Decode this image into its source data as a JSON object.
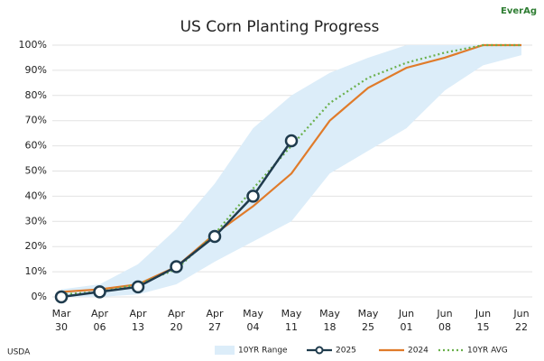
{
  "chart_data": {
    "type": "line",
    "title": "US Corn Planting Progress",
    "source": "USDA",
    "logo": "EverAg",
    "categories": [
      "Mar 30",
      "Apr 06",
      "Apr 13",
      "Apr 20",
      "Apr 27",
      "May 04",
      "May 11",
      "May 18",
      "May 25",
      "Jun 01",
      "Jun 08",
      "Jun 15",
      "Jun 22"
    ],
    "ylim": [
      0,
      100
    ],
    "yticks": [
      {
        "value": 0,
        "label": "0%"
      },
      {
        "value": 10,
        "label": "10%"
      },
      {
        "value": 20,
        "label": "20%"
      },
      {
        "value": 30,
        "label": "30%"
      },
      {
        "value": 40,
        "label": "40%"
      },
      {
        "value": 50,
        "label": "50%"
      },
      {
        "value": 60,
        "label": "60%"
      },
      {
        "value": 70,
        "label": "70%"
      },
      {
        "value": 80,
        "label": "80%"
      },
      {
        "value": 90,
        "label": "90%"
      },
      {
        "value": 100,
        "label": "100%"
      }
    ],
    "grid": true,
    "legend": "bottom",
    "series": [
      {
        "name": "10YR Range",
        "color": "#dcedf9",
        "low": [
          0,
          0,
          1,
          5,
          14,
          22,
          30,
          49,
          58,
          67,
          82,
          92,
          96
        ],
        "high": [
          3,
          5,
          13,
          27,
          45,
          67,
          80,
          89,
          95,
          100,
          100,
          100,
          100
        ]
      },
      {
        "name": "2025",
        "color": "#1f3b4d",
        "values": [
          0,
          2,
          4,
          12,
          24,
          40,
          62,
          null,
          null,
          null,
          null,
          null,
          null
        ]
      },
      {
        "name": "2024",
        "color": "#e07b2a",
        "values": [
          2,
          3,
          5,
          12,
          25,
          36,
          49,
          70,
          83,
          91,
          95,
          100,
          100
        ]
      },
      {
        "name": "10YR AVG",
        "color": "#6ab04c",
        "values": [
          1,
          2,
          5,
          11,
          25,
          43,
          60,
          77,
          87,
          93,
          97,
          100,
          100
        ]
      }
    ]
  }
}
